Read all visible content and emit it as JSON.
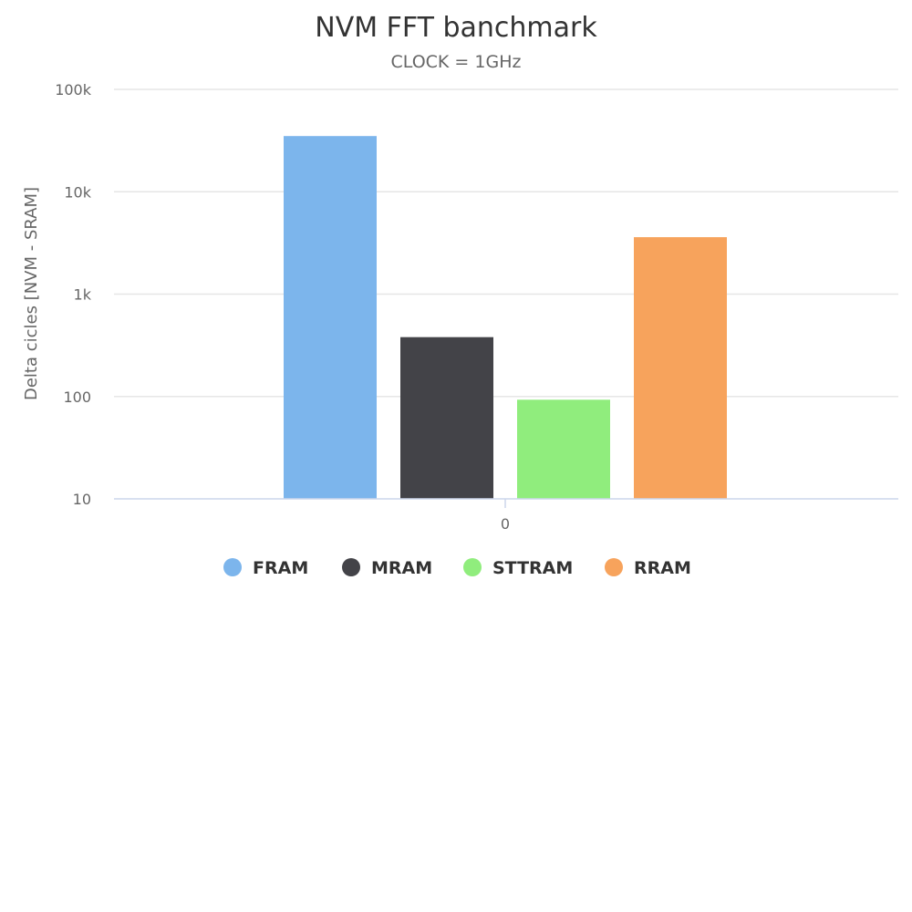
{
  "chart_data": {
    "type": "bar",
    "title": "NVM FFT banchmark",
    "subtitle": "CLOCK = 1GHz",
    "ylabel": "Delta cicles [NVM - SRAM]",
    "xlabel": "",
    "yscale": "log",
    "ylim": [
      10,
      100000
    ],
    "ytick_values": [
      10,
      100,
      1000,
      10000,
      100000
    ],
    "ytick_labels": [
      "10",
      "100",
      "1k",
      "10k",
      "100k"
    ],
    "categories": [
      "0"
    ],
    "legend_position": "bottom-center",
    "series": [
      {
        "name": "FRAM",
        "values": [
          35000
        ],
        "color": "#7cb5ec"
      },
      {
        "name": "MRAM",
        "values": [
          380
        ],
        "color": "#434348"
      },
      {
        "name": "STTRAM",
        "values": [
          93
        ],
        "color": "#90ed7d"
      },
      {
        "name": "RRAM",
        "values": [
          3600
        ],
        "color": "#f7a35c"
      }
    ]
  }
}
